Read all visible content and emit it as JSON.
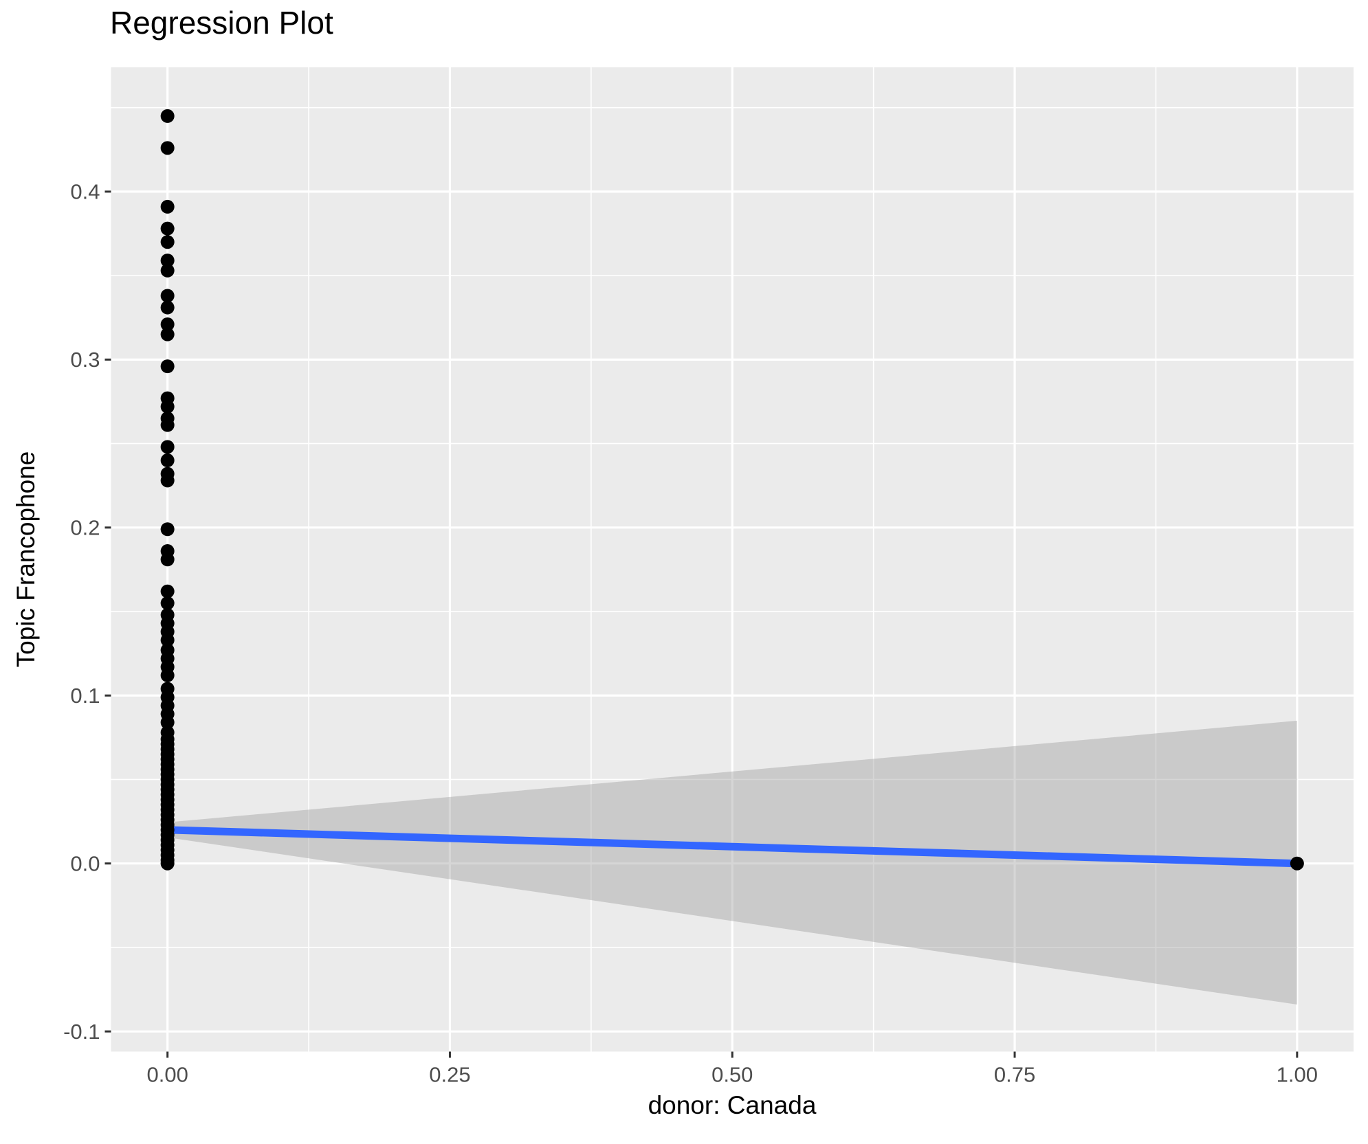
{
  "figure": {
    "title": "Regression Plot",
    "x_axis_label": "donor: Canada",
    "y_axis_label": "Topic Francophone"
  },
  "chart_data": {
    "type": "scatter",
    "title": "Regression Plot",
    "xlabel": "donor: Canada",
    "ylabel": "Topic Francophone",
    "xlim": [
      -0.05,
      1.05
    ],
    "ylim": [
      -0.112,
      0.474
    ],
    "grid": true,
    "legend_position": "none",
    "x_ticks": {
      "values": [
        0.0,
        0.25,
        0.5,
        0.75,
        1.0
      ],
      "labels": [
        "0.00",
        "0.25",
        "0.50",
        "0.75",
        "1.00"
      ]
    },
    "y_ticks": {
      "values": [
        -0.1,
        0.0,
        0.1,
        0.2,
        0.3,
        0.4
      ],
      "labels": [
        "-0.1",
        "0.0",
        "0.1",
        "0.2",
        "0.3",
        "0.4"
      ]
    },
    "x_minor_ticks": [
      0.125,
      0.375,
      0.625,
      0.875
    ],
    "y_minor_ticks": [
      -0.05,
      0.05,
      0.15,
      0.25,
      0.35,
      0.45
    ],
    "series": [
      {
        "name": "observations",
        "kind": "scatter",
        "color": "#000000",
        "point_radius": 10,
        "points": [
          [
            0,
            0.445
          ],
          [
            0,
            0.426
          ],
          [
            0,
            0.391
          ],
          [
            0,
            0.378
          ],
          [
            0,
            0.37
          ],
          [
            0,
            0.359
          ],
          [
            0,
            0.353
          ],
          [
            0,
            0.338
          ],
          [
            0,
            0.331
          ],
          [
            0,
            0.321
          ],
          [
            0,
            0.315
          ],
          [
            0,
            0.296
          ],
          [
            0,
            0.277
          ],
          [
            0,
            0.272
          ],
          [
            0,
            0.265
          ],
          [
            0,
            0.261
          ],
          [
            0,
            0.248
          ],
          [
            0,
            0.24
          ],
          [
            0,
            0.232
          ],
          [
            0,
            0.228
          ],
          [
            0,
            0.199
          ],
          [
            0,
            0.186
          ],
          [
            0,
            0.181
          ],
          [
            0,
            0.162
          ],
          [
            0,
            0.155
          ],
          [
            0,
            0.148
          ],
          [
            0,
            0.143
          ],
          [
            0,
            0.138
          ],
          [
            0,
            0.133
          ],
          [
            0,
            0.127
          ],
          [
            0,
            0.122
          ],
          [
            0,
            0.117
          ],
          [
            0,
            0.112
          ],
          [
            0,
            0.104
          ],
          [
            0,
            0.099
          ],
          [
            0,
            0.094
          ],
          [
            0,
            0.089
          ],
          [
            0,
            0.084
          ],
          [
            0,
            0.078
          ],
          [
            0,
            0.074
          ],
          [
            0,
            0.071
          ],
          [
            0,
            0.068
          ],
          [
            0,
            0.065
          ],
          [
            0,
            0.062
          ],
          [
            0,
            0.059
          ],
          [
            0,
            0.056
          ],
          [
            0,
            0.053
          ],
          [
            0,
            0.05
          ],
          [
            0,
            0.047
          ],
          [
            0,
            0.044
          ],
          [
            0,
            0.041
          ],
          [
            0,
            0.038
          ],
          [
            0,
            0.035
          ],
          [
            0,
            0.032
          ],
          [
            0,
            0.029
          ],
          [
            0,
            0.026
          ],
          [
            0,
            0.023
          ],
          [
            0,
            0.02
          ],
          [
            0,
            0.017
          ],
          [
            0,
            0.014
          ],
          [
            0,
            0.011
          ],
          [
            0,
            0.008
          ],
          [
            0,
            0.005
          ],
          [
            0,
            0.002
          ],
          [
            0,
            0.0
          ],
          [
            1,
            0.0
          ]
        ]
      },
      {
        "name": "regression-line",
        "kind": "line",
        "color": "#3366FF",
        "stroke_width": 11,
        "x": [
          0,
          1
        ],
        "y": [
          0.02,
          0.0
        ]
      },
      {
        "name": "confidence-band",
        "kind": "area",
        "color": "#999999",
        "opacity": 0.4,
        "x": [
          0,
          1
        ],
        "upper": [
          0.0245,
          0.085
        ],
        "lower": [
          0.0155,
          -0.084
        ]
      }
    ],
    "colors": {
      "panel_background": "#EBEBEB",
      "gridline": "#FFFFFF",
      "tick_mark": "#333333",
      "tick_label": "#4D4D4D",
      "point": "#000000",
      "line": "#3366FF",
      "band": "#999999",
      "title": "#000000"
    }
  }
}
